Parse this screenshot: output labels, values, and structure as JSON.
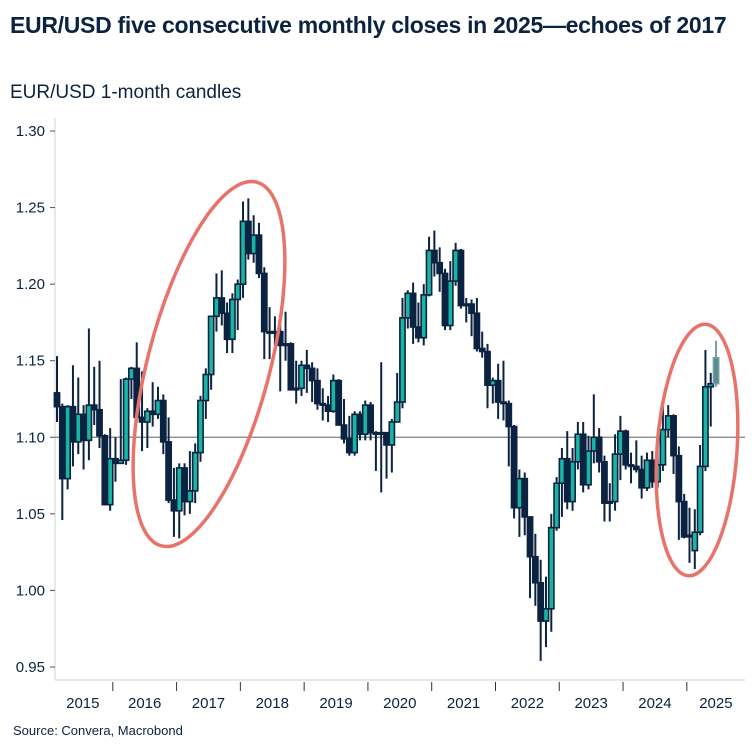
{
  "title": "EUR/USD five consecutive monthly closes in 2025—echoes of 2017",
  "subtitle": "EUR/USD 1-month candles",
  "source": "Source: Convera, Macrobond",
  "colors": {
    "up_fill": "#18b5a4",
    "candle_outline": "#0b2341",
    "down_fill": "#0b2341",
    "current_candle": "#7a9ba0",
    "highlight_ellipse": "#e8736a",
    "reference_line": "#7f7f7f"
  },
  "chart_data": {
    "type": "candlestick",
    "title": "EUR/USD five consecutive monthly closes in 2025—echoes of 2017",
    "subtitle": "EUR/USD 1-month candles",
    "ylim": [
      0.95,
      1.3
    ],
    "yticks": [
      "0.95",
      "1.00",
      "1.05",
      "1.10",
      "1.15",
      "1.20",
      "1.25",
      "1.30"
    ],
    "xticks": [
      "2015",
      "2016",
      "2017",
      "2018",
      "2019",
      "2020",
      "2021",
      "2022",
      "2023",
      "2024",
      "2025"
    ],
    "reference_line": 1.1,
    "grid": false,
    "highlights": [
      "2017",
      "2025"
    ],
    "fields": [
      "month",
      "open",
      "high",
      "low",
      "close"
    ],
    "candles": [
      [
        "2015-02",
        1.129,
        1.153,
        1.11,
        1.12
      ],
      [
        "2015-03",
        1.12,
        1.122,
        1.046,
        1.073
      ],
      [
        "2015-04",
        1.073,
        1.121,
        1.066,
        1.12
      ],
      [
        "2015-05",
        1.12,
        1.147,
        1.081,
        1.097
      ],
      [
        "2015-06",
        1.097,
        1.139,
        1.089,
        1.115
      ],
      [
        "2015-07",
        1.115,
        1.121,
        1.079,
        1.098
      ],
      [
        "2015-08",
        1.098,
        1.171,
        1.085,
        1.121
      ],
      [
        "2015-09",
        1.121,
        1.146,
        1.108,
        1.118
      ],
      [
        "2015-10",
        1.118,
        1.15,
        1.093,
        1.101
      ],
      [
        "2015-11",
        1.101,
        1.102,
        1.056,
        1.056
      ],
      [
        "2015-12",
        1.056,
        1.106,
        1.052,
        1.086
      ],
      [
        "2016-01",
        1.086,
        1.1,
        1.071,
        1.083
      ],
      [
        "2016-02",
        1.083,
        1.138,
        1.083,
        1.085
      ],
      [
        "2016-03",
        1.085,
        1.139,
        1.082,
        1.138
      ],
      [
        "2016-04",
        1.138,
        1.146,
        1.125,
        1.145
      ],
      [
        "2016-05",
        1.145,
        1.162,
        1.11,
        1.113
      ],
      [
        "2016-06",
        1.113,
        1.143,
        1.091,
        1.11
      ],
      [
        "2016-07",
        1.11,
        1.119,
        1.093,
        1.117
      ],
      [
        "2016-08",
        1.117,
        1.136,
        1.107,
        1.115
      ],
      [
        "2016-09",
        1.115,
        1.133,
        1.112,
        1.124
      ],
      [
        "2016-10",
        1.124,
        1.128,
        1.089,
        1.097
      ],
      [
        "2016-11",
        1.097,
        1.113,
        1.057,
        1.059
      ],
      [
        "2016-12",
        1.059,
        1.08,
        1.035,
        1.052
      ],
      [
        "2017-01",
        1.052,
        1.083,
        1.034,
        1.08
      ],
      [
        "2017-02",
        1.08,
        1.083,
        1.049,
        1.058
      ],
      [
        "2017-03",
        1.058,
        1.091,
        1.05,
        1.065
      ],
      [
        "2017-04",
        1.065,
        1.096,
        1.057,
        1.09
      ],
      [
        "2017-05",
        1.09,
        1.127,
        1.084,
        1.124
      ],
      [
        "2017-06",
        1.124,
        1.145,
        1.112,
        1.141
      ],
      [
        "2017-07",
        1.141,
        1.178,
        1.131,
        1.179
      ],
      [
        "2017-08",
        1.179,
        1.207,
        1.169,
        1.191
      ],
      [
        "2017-09",
        1.191,
        1.209,
        1.173,
        1.181
      ],
      [
        "2017-10",
        1.181,
        1.188,
        1.155,
        1.164
      ],
      [
        "2017-11",
        1.164,
        1.194,
        1.155,
        1.19
      ],
      [
        "2017-12",
        1.19,
        1.203,
        1.17,
        1.2
      ],
      [
        "2018-01",
        1.2,
        1.254,
        1.191,
        1.241
      ],
      [
        "2018-02",
        1.241,
        1.256,
        1.216,
        1.22
      ],
      [
        "2018-03",
        1.22,
        1.245,
        1.214,
        1.232
      ],
      [
        "2018-04",
        1.232,
        1.24,
        1.204,
        1.207
      ],
      [
        "2018-05",
        1.207,
        1.211,
        1.151,
        1.169
      ],
      [
        "2018-06",
        1.169,
        1.185,
        1.151,
        1.168
      ],
      [
        "2018-07",
        1.168,
        1.179,
        1.159,
        1.169
      ],
      [
        "2018-08",
        1.169,
        1.174,
        1.13,
        1.16
      ],
      [
        "2018-09",
        1.16,
        1.182,
        1.15,
        1.161
      ],
      [
        "2018-10",
        1.161,
        1.162,
        1.132,
        1.131
      ],
      [
        "2018-11",
        1.131,
        1.15,
        1.122,
        1.132
      ],
      [
        "2018-12",
        1.132,
        1.15,
        1.127,
        1.147
      ],
      [
        "2019-01",
        1.147,
        1.157,
        1.129,
        1.145
      ],
      [
        "2019-02",
        1.145,
        1.149,
        1.123,
        1.137
      ],
      [
        "2019-03",
        1.137,
        1.145,
        1.118,
        1.122
      ],
      [
        "2019-04",
        1.122,
        1.132,
        1.111,
        1.121
      ],
      [
        "2019-05",
        1.121,
        1.127,
        1.11,
        1.117
      ],
      [
        "2019-06",
        1.117,
        1.141,
        1.116,
        1.137
      ],
      [
        "2019-07",
        1.137,
        1.138,
        1.11,
        1.108
      ],
      [
        "2019-08",
        1.108,
        1.125,
        1.096,
        1.099
      ],
      [
        "2019-09",
        1.099,
        1.114,
        1.088,
        1.09
      ],
      [
        "2019-10",
        1.09,
        1.117,
        1.088,
        1.115
      ],
      [
        "2019-11",
        1.115,
        1.117,
        1.098,
        1.102
      ],
      [
        "2019-12",
        1.102,
        1.124,
        1.098,
        1.121
      ],
      [
        "2020-01",
        1.121,
        1.123,
        1.098,
        1.103
      ],
      [
        "2020-02",
        1.103,
        1.104,
        1.078,
        1.102
      ],
      [
        "2020-03",
        1.102,
        1.149,
        1.064,
        1.103
      ],
      [
        "2020-04",
        1.103,
        1.102,
        1.073,
        1.095
      ],
      [
        "2020-05",
        1.095,
        1.112,
        1.077,
        1.11
      ],
      [
        "2020-06",
        1.11,
        1.142,
        1.11,
        1.123
      ],
      [
        "2020-07",
        1.123,
        1.191,
        1.119,
        1.178
      ],
      [
        "2020-08",
        1.178,
        1.196,
        1.171,
        1.194
      ],
      [
        "2020-09",
        1.194,
        1.201,
        1.161,
        1.172
      ],
      [
        "2020-10",
        1.172,
        1.188,
        1.162,
        1.165
      ],
      [
        "2020-11",
        1.165,
        1.2,
        1.16,
        1.193
      ],
      [
        "2020-12",
        1.193,
        1.231,
        1.192,
        1.222
      ],
      [
        "2021-01",
        1.222,
        1.235,
        1.205,
        1.214
      ],
      [
        "2021-02",
        1.214,
        1.224,
        1.195,
        1.207
      ],
      [
        "2021-03",
        1.207,
        1.21,
        1.17,
        1.173
      ],
      [
        "2021-04",
        1.173,
        1.215,
        1.17,
        1.202
      ],
      [
        "2021-05",
        1.202,
        1.227,
        1.199,
        1.222
      ],
      [
        "2021-06",
        1.222,
        1.223,
        1.184,
        1.186
      ],
      [
        "2021-07",
        1.186,
        1.191,
        1.175,
        1.187
      ],
      [
        "2021-08",
        1.187,
        1.19,
        1.166,
        1.181
      ],
      [
        "2021-09",
        1.181,
        1.191,
        1.156,
        1.158
      ],
      [
        "2021-10",
        1.158,
        1.169,
        1.152,
        1.156
      ],
      [
        "2021-11",
        1.156,
        1.161,
        1.119,
        1.134
      ],
      [
        "2021-12",
        1.134,
        1.139,
        1.122,
        1.137
      ],
      [
        "2022-01",
        1.137,
        1.148,
        1.112,
        1.123
      ],
      [
        "2022-02",
        1.123,
        1.15,
        1.111,
        1.122
      ],
      [
        "2022-03",
        1.122,
        1.124,
        1.081,
        1.107
      ],
      [
        "2022-04",
        1.107,
        1.108,
        1.047,
        1.054
      ],
      [
        "2022-05",
        1.054,
        1.079,
        1.035,
        1.073
      ],
      [
        "2022-06",
        1.073,
        1.077,
        1.036,
        1.048
      ],
      [
        "2022-07",
        1.048,
        1.048,
        0.995,
        1.022
      ],
      [
        "2022-08",
        1.022,
        1.037,
        0.99,
        1.005
      ],
      [
        "2022-09",
        1.005,
        1.02,
        0.954,
        0.98
      ],
      [
        "2022-10",
        0.98,
        1.009,
        0.963,
        0.988
      ],
      [
        "2022-11",
        0.988,
        1.05,
        0.973,
        1.041
      ],
      [
        "2022-12",
        1.041,
        1.074,
        1.039,
        1.07
      ],
      [
        "2023-01",
        1.07,
        1.093,
        1.048,
        1.086
      ],
      [
        "2023-02",
        1.086,
        1.104,
        1.053,
        1.058
      ],
      [
        "2023-03",
        1.058,
        1.093,
        1.052,
        1.084
      ],
      [
        "2023-04",
        1.084,
        1.11,
        1.079,
        1.102
      ],
      [
        "2023-05",
        1.102,
        1.11,
        1.064,
        1.069
      ],
      [
        "2023-06",
        1.069,
        1.101,
        1.066,
        1.091
      ],
      [
        "2023-07",
        1.091,
        1.128,
        1.083,
        1.1
      ],
      [
        "2023-08",
        1.1,
        1.106,
        1.077,
        1.084
      ],
      [
        "2023-09",
        1.084,
        1.088,
        1.045,
        1.057
      ],
      [
        "2023-10",
        1.057,
        1.07,
        1.045,
        1.058
      ],
      [
        "2023-11",
        1.058,
        1.102,
        1.052,
        1.089
      ],
      [
        "2023-12",
        1.089,
        1.114,
        1.072,
        1.104
      ],
      [
        "2024-01",
        1.104,
        1.105,
        1.079,
        1.082
      ],
      [
        "2024-02",
        1.082,
        1.09,
        1.07,
        1.081
      ],
      [
        "2024-03",
        1.081,
        1.098,
        1.077,
        1.079
      ],
      [
        "2024-04",
        1.079,
        1.088,
        1.06,
        1.067
      ],
      [
        "2024-05",
        1.067,
        1.09,
        1.065,
        1.085
      ],
      [
        "2024-06",
        1.085,
        1.091,
        1.067,
        1.071
      ],
      [
        "2024-07",
        1.071,
        1.095,
        1.067,
        1.082
      ],
      [
        "2024-08",
        1.082,
        1.12,
        1.078,
        1.105
      ],
      [
        "2024-09",
        1.105,
        1.121,
        1.1,
        1.114
      ],
      [
        "2024-10",
        1.114,
        1.115,
        1.076,
        1.088
      ],
      [
        "2024-11",
        1.088,
        1.094,
        1.033,
        1.058
      ],
      [
        "2024-12",
        1.058,
        1.063,
        1.034,
        1.035
      ],
      [
        "2025-01",
        1.035,
        1.054,
        1.018,
        1.036
      ],
      [
        "2025-02",
        1.026,
        1.053,
        1.014,
        1.038
      ],
      [
        "2025-03",
        1.038,
        1.095,
        1.036,
        1.081
      ],
      [
        "2025-04",
        1.081,
        1.157,
        1.078,
        1.133
      ],
      [
        "2025-05",
        1.133,
        1.142,
        1.107,
        1.135
      ],
      [
        "2025-06",
        1.135,
        1.163,
        1.133,
        1.152
      ]
    ],
    "current_period": "2025-06"
  }
}
